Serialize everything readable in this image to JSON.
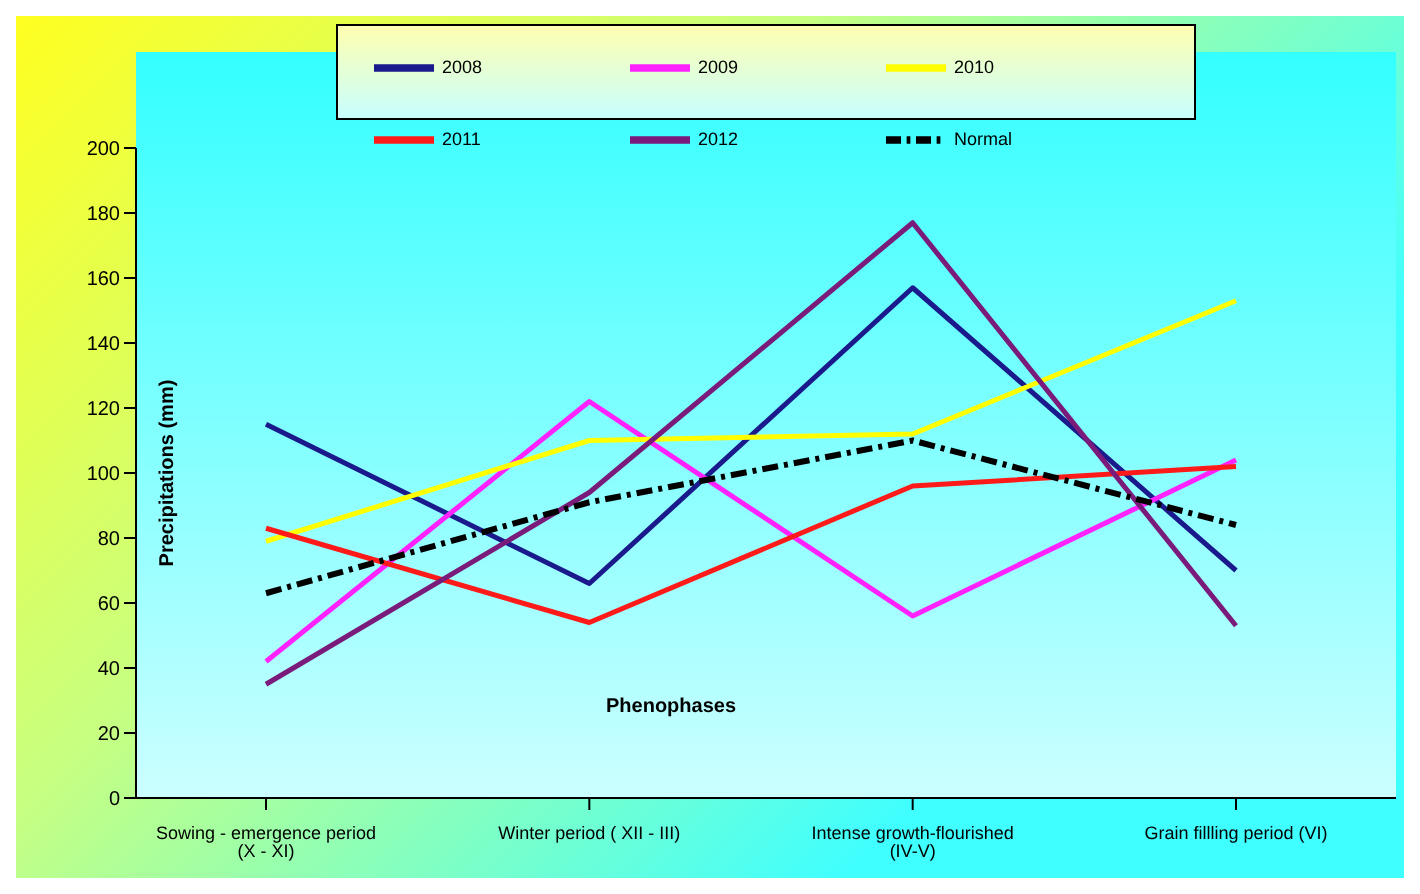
{
  "chart_data": {
    "type": "line",
    "xlabel": "Phenophases",
    "ylabel": "Precipitations  (mm)",
    "categories": [
      "Sowing - emergence period (X - XI)",
      "Winter period ( XII - III)",
      "Intense growth-flourished (IV-V)",
      "Grain fillling period (VI)"
    ],
    "series": [
      {
        "name": "2008",
        "color": "#1a1a8c",
        "values": [
          115,
          66,
          157,
          70
        ]
      },
      {
        "name": "2009",
        "color": "#ff22ff",
        "values": [
          42,
          122,
          56,
          104
        ]
      },
      {
        "name": "2010",
        "color": "#ffff00",
        "values": [
          79,
          110,
          112,
          153
        ]
      },
      {
        "name": "2011",
        "color": "#ff1a1a",
        "values": [
          83,
          54,
          96,
          102
        ]
      },
      {
        "name": "2012",
        "color": "#7a1a7a",
        "values": [
          35,
          94,
          177,
          53
        ]
      },
      {
        "name": "Normal",
        "color": "#000000",
        "values": [
          63,
          91,
          110,
          84
        ],
        "line_style": "dashed"
      }
    ],
    "ylim": [
      0,
      200
    ],
    "yticks": [
      0,
      20,
      40,
      60,
      80,
      100,
      120,
      140,
      160,
      180,
      200
    ],
    "grid": false,
    "legend": "top",
    "marker": "none"
  }
}
